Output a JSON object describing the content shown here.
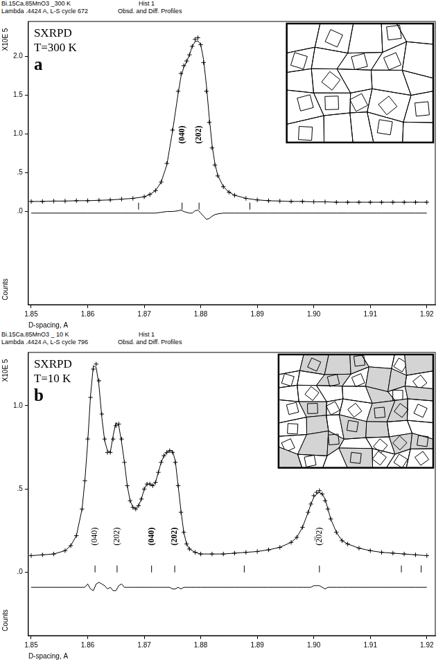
{
  "chart_data": [
    {
      "type": "line",
      "header": [
        [
          "Bi.15Ca.85MnO3 _300 K",
          "Hist 1"
        ],
        [
          "Lambda .4424 A, L-S cycle 672",
          "Obsd. and Diff. Profiles"
        ]
      ],
      "annotations": [
        "SXRPD",
        "T=300 K"
      ],
      "panel_label": "a",
      "peak_labels": [
        {
          "text": "(040)",
          "x": 1.8767
        },
        {
          "text": "(202)",
          "x": 1.8797
        }
      ],
      "x_label": "D-spacing, A",
      "y_label": "Counts",
      "y_unit_label": "X10E 5",
      "xlim": [
        1.8495,
        1.9215
      ],
      "xticks": [
        1.85,
        1.86,
        1.87,
        1.88,
        1.89,
        {
          "value": 1.9,
          "label": "1.90"
        },
        1.91,
        1.92
      ],
      "ylim": [
        -1.2,
        2.45
      ],
      "yticks": [
        {
          "value": 0,
          "label": ".0"
        },
        {
          "value": 0.5,
          "label": ".5"
        },
        {
          "value": 1,
          "label": "1.0"
        },
        {
          "value": 1.5,
          "label": "1.5"
        },
        {
          "value": 2,
          "label": "2.0"
        }
      ],
      "grid": false,
      "x": [
        1.85,
        1.852,
        1.854,
        1.856,
        1.858,
        1.86,
        1.862,
        1.864,
        1.866,
        1.868,
        1.87,
        1.871,
        1.872,
        1.873,
        1.874,
        1.875,
        1.876,
        1.8765,
        1.877,
        1.8775,
        1.878,
        1.8785,
        1.879,
        1.8795,
        1.88,
        1.8805,
        1.881,
        1.8815,
        1.882,
        1.8825,
        1.883,
        1.884,
        1.885,
        1.886,
        1.888,
        1.89,
        1.892,
        1.894,
        1.896,
        1.898,
        1.9,
        1.902,
        1.904,
        1.906,
        1.908,
        1.91,
        1.912,
        1.914,
        1.916,
        1.918,
        1.92
      ],
      "series": [
        {
          "type": "scatter",
          "marker": "cross",
          "color": "#000000",
          "values": [
            0.13,
            0.13,
            0.135,
            0.135,
            0.14,
            0.14,
            0.145,
            0.15,
            0.16,
            0.17,
            0.19,
            0.22,
            0.27,
            0.38,
            0.62,
            1.05,
            1.55,
            1.78,
            1.88,
            1.94,
            2.02,
            2.13,
            2.22,
            2.24,
            2.15,
            1.92,
            1.55,
            1.15,
            0.82,
            0.6,
            0.46,
            0.32,
            0.25,
            0.21,
            0.17,
            0.15,
            0.14,
            0.135,
            0.13,
            0.13,
            0.125,
            0.125,
            0.12,
            0.12,
            0.12,
            0.12,
            0.12,
            0.12,
            0.12,
            0.12,
            0.12
          ]
        },
        {
          "type": "line",
          "line_style": "solid",
          "color": "#000000",
          "values": [
            0.13,
            0.13,
            0.135,
            0.135,
            0.14,
            0.14,
            0.145,
            0.15,
            0.16,
            0.17,
            0.19,
            0.22,
            0.27,
            0.38,
            0.6,
            1.03,
            1.52,
            1.74,
            1.86,
            1.93,
            2.02,
            2.13,
            2.19,
            2.2,
            2.15,
            1.96,
            1.63,
            1.22,
            0.86,
            0.62,
            0.47,
            0.32,
            0.25,
            0.21,
            0.17,
            0.15,
            0.14,
            0.135,
            0.13,
            0.13,
            0.125,
            0.125,
            0.12,
            0.12,
            0.12,
            0.12,
            0.12,
            0.12,
            0.12,
            0.12,
            0.12
          ]
        },
        {
          "type": "line",
          "line_style": "solid",
          "color": "#000000",
          "values": [
            -0.02,
            -0.02,
            -0.02,
            -0.02,
            -0.02,
            -0.02,
            -0.02,
            -0.02,
            -0.02,
            -0.02,
            -0.02,
            -0.02,
            -0.02,
            -0.01,
            0.0,
            0.0,
            0.01,
            0.02,
            0.0,
            -0.01,
            -0.02,
            -0.02,
            0.01,
            0.02,
            -0.02,
            -0.06,
            -0.1,
            -0.09,
            -0.06,
            -0.04,
            -0.03,
            -0.02,
            -0.02,
            -0.02,
            -0.02,
            -0.02,
            -0.02,
            -0.02,
            -0.02,
            -0.02,
            -0.02,
            -0.02,
            -0.02,
            -0.02,
            -0.02,
            -0.02,
            -0.02,
            -0.02,
            -0.02,
            -0.02,
            -0.02
          ]
        },
        {
          "type": "scatter",
          "marker": "tick",
          "color": "#000000",
          "x": [
            1.869,
            1.8767,
            1.8797,
            1.8887
          ],
          "values": [
            0.07,
            0.07,
            0.07,
            0.07
          ]
        }
      ]
    },
    {
      "type": "line",
      "header": [
        [
          "Bi.15Ca.85MnO3 _ 10 K",
          "Hist 1"
        ],
        [
          "Lambda .4424 A, L-S cycle 796",
          "Obsd. and Diff. Profiles"
        ]
      ],
      "annotations": [
        "SXRPD",
        "T=10 K"
      ],
      "panel_label": "b",
      "peak_labels": [
        {
          "text": "(040)",
          "x": 1.8613
        },
        {
          "text": "(202)",
          "x": 1.8652
        },
        {
          "text": "(040)",
          "x": 1.8713
        },
        {
          "text": "(202)",
          "x": 1.8754
        },
        {
          "text": "(2̅02)",
          "x": 1.901
        }
      ],
      "x_label": "D-spacing, A",
      "y_label": "Counts",
      "y_unit_label": "X10E 5",
      "xlim": [
        1.8495,
        1.9215
      ],
      "xticks": [
        1.85,
        1.86,
        1.87,
        1.88,
        1.89,
        {
          "value": 1.9,
          "label": "1.90"
        },
        1.91,
        1.92
      ],
      "ylim": [
        -0.38,
        1.32
      ],
      "yticks": [
        {
          "value": 0,
          "label": ".0"
        },
        {
          "value": 0.5,
          "label": ".5"
        },
        {
          "value": 1,
          "label": "1.0"
        }
      ],
      "grid": false,
      "x": [
        1.85,
        1.852,
        1.854,
        1.856,
        1.857,
        1.858,
        1.859,
        1.8595,
        1.86,
        1.8605,
        1.861,
        1.8615,
        1.862,
        1.8625,
        1.863,
        1.8635,
        1.864,
        1.8645,
        1.865,
        1.8655,
        1.866,
        1.8665,
        1.867,
        1.8675,
        1.868,
        1.8685,
        1.869,
        1.8695,
        1.87,
        1.8705,
        1.871,
        1.8715,
        1.872,
        1.8725,
        1.873,
        1.8735,
        1.874,
        1.8745,
        1.875,
        1.8755,
        1.876,
        1.8765,
        1.877,
        1.8775,
        1.878,
        1.879,
        1.88,
        1.882,
        1.884,
        1.886,
        1.888,
        1.89,
        1.892,
        1.894,
        1.896,
        1.897,
        1.898,
        1.899,
        1.8995,
        1.9,
        1.9005,
        1.901,
        1.9015,
        1.902,
        1.9025,
        1.903,
        1.904,
        1.905,
        1.906,
        1.908,
        1.91,
        1.912,
        1.914,
        1.916,
        1.918,
        1.92
      ],
      "series": [
        {
          "type": "scatter",
          "marker": "cross",
          "color": "#000000",
          "values": [
            0.1,
            0.105,
            0.11,
            0.13,
            0.16,
            0.22,
            0.38,
            0.55,
            0.8,
            1.05,
            1.22,
            1.25,
            1.15,
            0.95,
            0.8,
            0.72,
            0.72,
            0.8,
            0.88,
            0.89,
            0.8,
            0.66,
            0.52,
            0.43,
            0.39,
            0.38,
            0.4,
            0.44,
            0.5,
            0.53,
            0.53,
            0.52,
            0.54,
            0.6,
            0.66,
            0.7,
            0.72,
            0.73,
            0.72,
            0.66,
            0.52,
            0.36,
            0.24,
            0.17,
            0.14,
            0.12,
            0.11,
            0.11,
            0.11,
            0.115,
            0.12,
            0.125,
            0.135,
            0.15,
            0.18,
            0.21,
            0.27,
            0.36,
            0.41,
            0.46,
            0.48,
            0.49,
            0.47,
            0.43,
            0.38,
            0.32,
            0.24,
            0.19,
            0.17,
            0.145,
            0.13,
            0.12,
            0.115,
            0.11,
            0.105,
            0.1
          ]
        },
        {
          "type": "line",
          "line_style": "solid",
          "color": "#000000",
          "values": [
            0.1,
            0.105,
            0.11,
            0.13,
            0.16,
            0.22,
            0.38,
            0.55,
            0.78,
            1.06,
            1.24,
            1.23,
            1.12,
            0.93,
            0.79,
            0.73,
            0.72,
            0.82,
            0.9,
            0.88,
            0.78,
            0.66,
            0.52,
            0.43,
            0.39,
            0.38,
            0.4,
            0.44,
            0.5,
            0.53,
            0.53,
            0.52,
            0.54,
            0.6,
            0.66,
            0.7,
            0.72,
            0.73,
            0.73,
            0.67,
            0.52,
            0.37,
            0.24,
            0.17,
            0.14,
            0.12,
            0.11,
            0.11,
            0.11,
            0.115,
            0.12,
            0.125,
            0.135,
            0.15,
            0.18,
            0.21,
            0.27,
            0.36,
            0.41,
            0.45,
            0.47,
            0.48,
            0.47,
            0.44,
            0.38,
            0.32,
            0.24,
            0.19,
            0.17,
            0.145,
            0.13,
            0.12,
            0.115,
            0.11,
            0.105,
            0.1
          ]
        },
        {
          "type": "line",
          "line_style": "solid",
          "color": "#000000",
          "values": [
            -0.09,
            -0.09,
            -0.09,
            -0.09,
            -0.09,
            -0.09,
            -0.09,
            -0.09,
            -0.07,
            -0.1,
            -0.11,
            -0.07,
            -0.06,
            -0.07,
            -0.08,
            -0.1,
            -0.09,
            -0.11,
            -0.11,
            -0.08,
            -0.07,
            -0.09,
            -0.09,
            -0.09,
            -0.09,
            -0.09,
            -0.09,
            -0.09,
            -0.09,
            -0.09,
            -0.09,
            -0.09,
            -0.09,
            -0.09,
            -0.09,
            -0.09,
            -0.09,
            -0.09,
            -0.1,
            -0.1,
            -0.09,
            -0.1,
            -0.09,
            -0.09,
            -0.09,
            -0.09,
            -0.09,
            -0.09,
            -0.09,
            -0.09,
            -0.09,
            -0.09,
            -0.09,
            -0.09,
            -0.09,
            -0.09,
            -0.09,
            -0.09,
            -0.09,
            -0.08,
            -0.08,
            -0.08,
            -0.09,
            -0.1,
            -0.09,
            -0.09,
            -0.09,
            -0.09,
            -0.09,
            -0.09,
            -0.09,
            -0.09,
            -0.09,
            -0.09,
            -0.09,
            -0.09
          ]
        },
        {
          "type": "scatter",
          "marker": "tick",
          "color": "#000000",
          "x": [
            1.8613,
            1.8652,
            1.8713,
            1.8754,
            1.8877,
            1.901,
            1.9155,
            1.919
          ],
          "values": [
            0.02,
            0.02,
            0.02,
            0.02,
            0.02,
            0.02,
            0.02,
            0.02
          ]
        }
      ]
    }
  ]
}
